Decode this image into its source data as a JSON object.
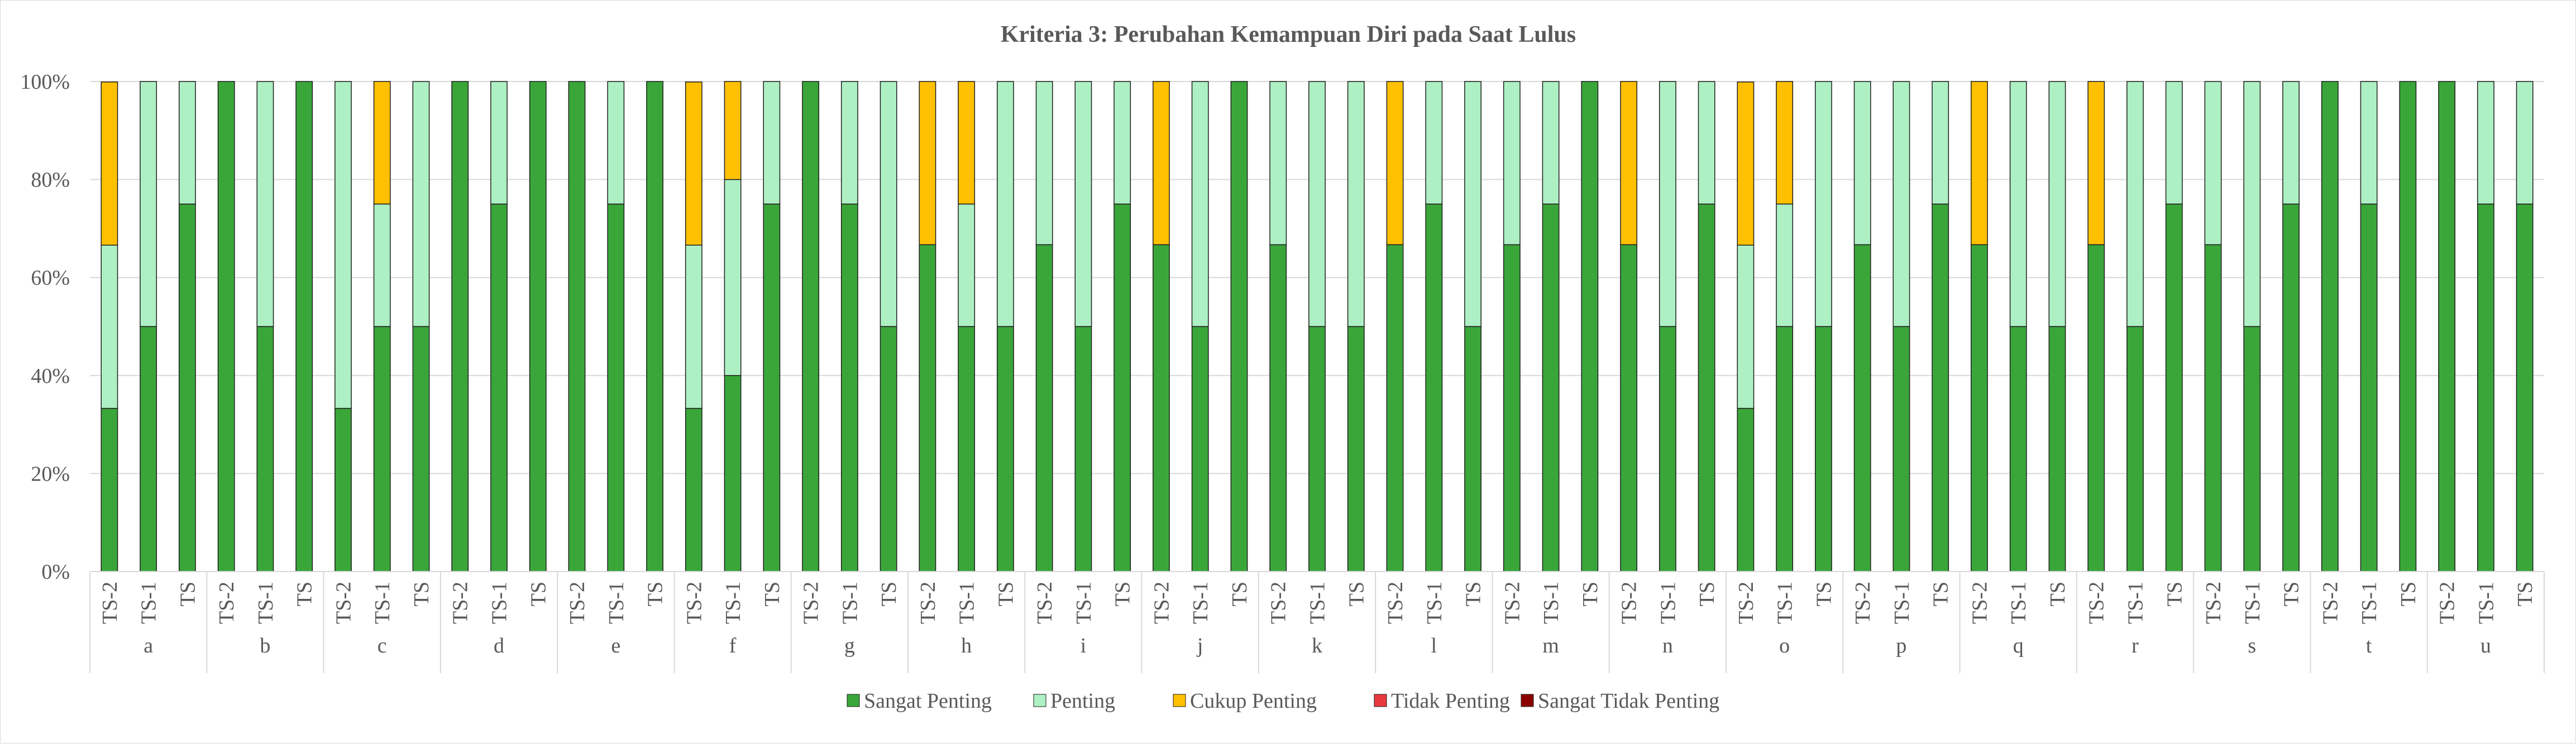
{
  "chart_data": {
    "type": "bar",
    "stacked": true,
    "percent": true,
    "title": "Kriteria 3: Perubahan Kemampuan Diri pada Saat Lulus",
    "xlabel": "",
    "ylabel": "",
    "ylim": [
      0,
      100
    ],
    "yticks": [
      "0%",
      "20%",
      "40%",
      "60%",
      "80%",
      "100%"
    ],
    "grid": true,
    "legend_position": "bottom",
    "groups": [
      "a",
      "b",
      "c",
      "d",
      "e",
      "f",
      "g",
      "h",
      "i",
      "j",
      "k",
      "l",
      "m",
      "n",
      "o",
      "p",
      "q",
      "r",
      "s",
      "t",
      "u"
    ],
    "subcategories": [
      "TS-2",
      "TS-1",
      "TS"
    ],
    "series": [
      {
        "name": "Sangat Penting",
        "color": "#3aa63a",
        "values": [
          33.3,
          50,
          75,
          100,
          50,
          100,
          33.3,
          50,
          50,
          100,
          75,
          100,
          100,
          75,
          100,
          33.3,
          40,
          75,
          100,
          75,
          50,
          66.7,
          50,
          50,
          66.7,
          50,
          75,
          66.7,
          50,
          100,
          66.7,
          50,
          50,
          66.7,
          75,
          50,
          66.7,
          75,
          100,
          66.7,
          50,
          75,
          33.3,
          50,
          50,
          66.7,
          50,
          75,
          66.7,
          50,
          50,
          66.7,
          50,
          75,
          66.7,
          50,
          75,
          100,
          75,
          100,
          100,
          75,
          75
        ]
      },
      {
        "name": "Penting",
        "color": "#adf0c3",
        "values": [
          33.3,
          50,
          25,
          0,
          50,
          0,
          66.7,
          25,
          50,
          0,
          25,
          0,
          0,
          25,
          0,
          33.3,
          40,
          25,
          0,
          25,
          50,
          0,
          25,
          50,
          33.3,
          50,
          25,
          0,
          50,
          0,
          33.3,
          50,
          50,
          0,
          25,
          50,
          33.3,
          25,
          0,
          0,
          50,
          25,
          33.3,
          25,
          50,
          33.3,
          50,
          25,
          0,
          50,
          50,
          0,
          50,
          25,
          33.3,
          50,
          25,
          0,
          25,
          0,
          0,
          25,
          25
        ]
      },
      {
        "name": "Cukup Penting",
        "color": "#ffc000",
        "values": [
          33.3,
          0,
          0,
          0,
          0,
          0,
          0,
          25,
          0,
          0,
          0,
          0,
          0,
          0,
          0,
          33.3,
          20,
          0,
          0,
          0,
          0,
          33.3,
          25,
          0,
          0,
          0,
          0,
          33.3,
          0,
          0,
          0,
          0,
          0,
          33.3,
          0,
          0,
          0,
          0,
          0,
          33.3,
          0,
          0,
          33.3,
          25,
          0,
          0,
          0,
          0,
          33.3,
          0,
          0,
          33.3,
          0,
          0,
          0,
          0,
          0,
          0,
          0,
          0,
          0,
          0,
          0
        ]
      },
      {
        "name": "Tidak Penting",
        "color": "#e8393f",
        "values": [
          0,
          0,
          0,
          0,
          0,
          0,
          0,
          0,
          0,
          0,
          0,
          0,
          0,
          0,
          0,
          0,
          0,
          0,
          0,
          0,
          0,
          0,
          0,
          0,
          0,
          0,
          0,
          0,
          0,
          0,
          0,
          0,
          0,
          0,
          0,
          0,
          0,
          0,
          0,
          0,
          0,
          0,
          0,
          0,
          0,
          0,
          0,
          0,
          0,
          0,
          0,
          0,
          0,
          0,
          0,
          0,
          0,
          0,
          0,
          0,
          0,
          0,
          0
        ]
      },
      {
        "name": "Sangat Tidak Penting",
        "color": "#8b0000",
        "values": [
          0,
          0,
          0,
          0,
          0,
          0,
          0,
          0,
          0,
          0,
          0,
          0,
          0,
          0,
          0,
          0,
          0,
          0,
          0,
          0,
          0,
          0,
          0,
          0,
          0,
          0,
          0,
          0,
          0,
          0,
          0,
          0,
          0,
          0,
          0,
          0,
          0,
          0,
          0,
          0,
          0,
          0,
          0,
          0,
          0,
          0,
          0,
          0,
          0,
          0,
          0,
          0,
          0,
          0,
          0,
          0,
          0,
          0,
          0,
          0,
          0,
          0,
          0
        ]
      }
    ]
  }
}
